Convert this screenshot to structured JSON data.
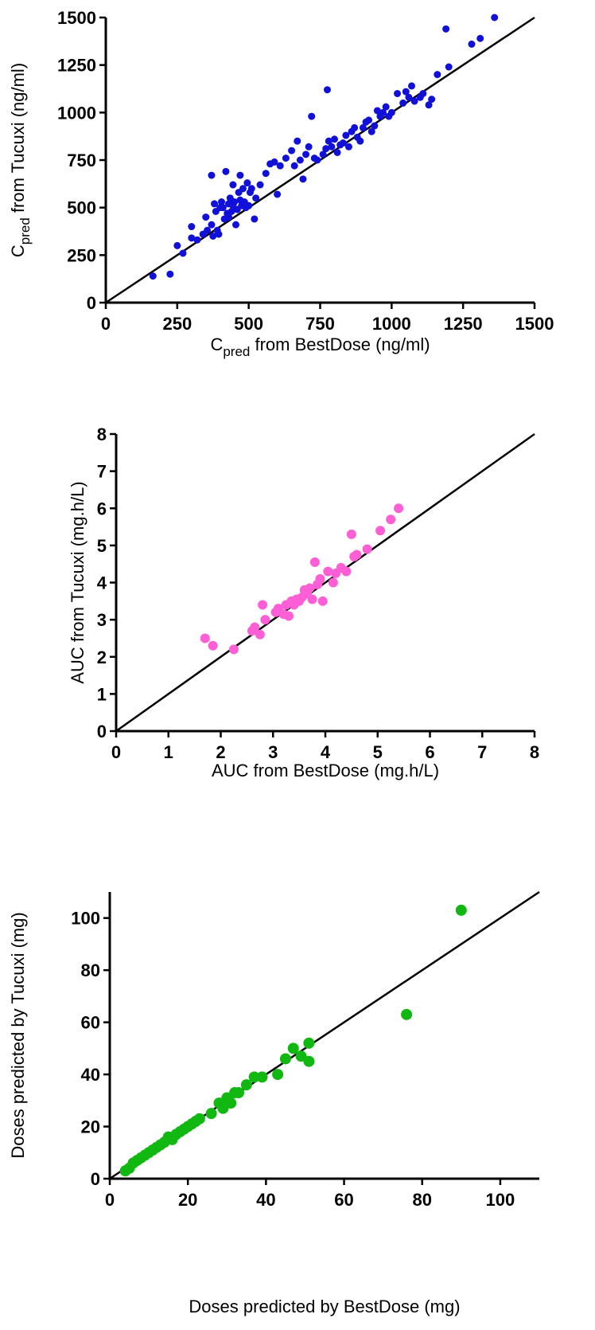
{
  "chart_data": [
    {
      "type": "scatter",
      "xlabel_main": "C",
      "xlabel_sub": "pred",
      "xlabel_rest": " from BestDose (ng/ml)",
      "ylabel_main": "C",
      "ylabel_sub": "pred",
      "ylabel_rest": " from Tucuxi (ng/ml)",
      "xlim": [
        0,
        1500
      ],
      "ylim": [
        0,
        1500
      ],
      "xticks": [
        "0",
        "250",
        "500",
        "750",
        "1000",
        "1250",
        "1500"
      ],
      "yticks": [
        "0",
        "250",
        "500",
        "750",
        "1000",
        "1250",
        "1500"
      ],
      "identity_line": true,
      "color": "#1010d8",
      "marker_radius": 4.5,
      "series": [
        {
          "x": [
            165,
            225,
            250,
            270,
            300,
            300,
            320,
            340,
            350,
            355,
            370,
            370,
            375,
            380,
            385,
            390,
            395,
            400,
            405,
            410,
            415,
            420,
            425,
            430,
            430,
            435,
            440,
            445,
            445,
            450,
            455,
            460,
            465,
            470,
            470,
            475,
            480,
            485,
            490,
            495,
            500,
            505,
            510,
            520,
            525,
            540,
            560,
            575,
            590,
            600,
            610,
            630,
            650,
            660,
            670,
            680,
            690,
            700,
            710,
            720,
            730,
            740,
            760,
            770,
            775,
            780,
            790,
            800,
            810,
            820,
            830,
            840,
            850,
            860,
            870,
            880,
            890,
            900,
            910,
            920,
            930,
            940,
            950,
            960,
            970,
            980,
            990,
            1000,
            1020,
            1040,
            1050,
            1060,
            1070,
            1080,
            1100,
            1110,
            1130,
            1140,
            1160,
            1190,
            1200,
            1280,
            1310,
            1360
          ],
          "y": [
            140,
            150,
            300,
            260,
            400,
            340,
            330,
            360,
            450,
            380,
            670,
            410,
            350,
            520,
            480,
            380,
            360,
            500,
            530,
            500,
            440,
            690,
            470,
            520,
            450,
            550,
            480,
            510,
            620,
            530,
            410,
            490,
            580,
            540,
            670,
            510,
            600,
            530,
            500,
            630,
            510,
            580,
            600,
            440,
            550,
            620,
            680,
            730,
            740,
            570,
            720,
            760,
            800,
            720,
            850,
            750,
            650,
            780,
            820,
            980,
            760,
            750,
            780,
            810,
            1120,
            850,
            820,
            860,
            790,
            830,
            840,
            880,
            820,
            900,
            920,
            870,
            850,
            920,
            950,
            960,
            900,
            930,
            1010,
            980,
            1000,
            1030,
            980,
            1000,
            1100,
            1050,
            1110,
            1080,
            1140,
            1060,
            1080,
            1100,
            1040,
            1070,
            1200,
            1440,
            1240,
            1360,
            1390,
            1500
          ]
        }
      ]
    },
    {
      "type": "scatter",
      "xlabel": "AUC from BestDose (mg.h/L)",
      "ylabel": "AUC from Tucuxi (mg.h/L)",
      "xlim": [
        0,
        8
      ],
      "ylim": [
        0,
        8
      ],
      "xticks": [
        "0",
        "1",
        "2",
        "3",
        "4",
        "5",
        "6",
        "7",
        "8"
      ],
      "yticks": [
        "0",
        "1",
        "2",
        "3",
        "4",
        "5",
        "6",
        "7",
        "8"
      ],
      "identity_line": true,
      "color": "#ff5fd6",
      "marker_radius": 6,
      "series": [
        {
          "x": [
            1.7,
            1.85,
            2.25,
            2.6,
            2.65,
            2.75,
            2.8,
            2.85,
            3.05,
            3.1,
            3.2,
            3.25,
            3.3,
            3.35,
            3.4,
            3.45,
            3.5,
            3.55,
            3.6,
            3.65,
            3.7,
            3.75,
            3.8,
            3.85,
            3.9,
            3.95,
            4.05,
            4.15,
            4.2,
            4.3,
            4.4,
            4.5,
            4.55,
            4.6,
            4.8,
            5.05,
            5.25,
            5.4
          ],
          "y": [
            2.5,
            2.3,
            2.2,
            2.7,
            2.8,
            2.6,
            3.4,
            3.0,
            3.2,
            3.3,
            3.15,
            3.4,
            3.1,
            3.5,
            3.4,
            3.55,
            3.5,
            3.6,
            3.8,
            3.7,
            3.85,
            3.55,
            4.55,
            3.95,
            4.1,
            3.5,
            4.3,
            4.0,
            4.25,
            4.4,
            4.3,
            5.3,
            4.7,
            4.75,
            4.9,
            5.4,
            5.7,
            6.0
          ]
        }
      ]
    },
    {
      "type": "scatter",
      "xlabel": "Doses predicted by BestDose (mg)",
      "ylabel": "Doses predicted by Tucuxi (mg)",
      "xlim": [
        0,
        110
      ],
      "ylim": [
        0,
        110
      ],
      "xticks": [
        "0",
        "20",
        "40",
        "60",
        "80",
        "100"
      ],
      "yticks": [
        "0",
        "20",
        "40",
        "60",
        "80",
        "100"
      ],
      "identity_line": true,
      "color": "#11b811",
      "marker_radius": 7,
      "series": [
        {
          "x": [
            4,
            5,
            6,
            7,
            8,
            9,
            10,
            11,
            12,
            13,
            14,
            15,
            16,
            17,
            18,
            19,
            20,
            21,
            22,
            23,
            26,
            28,
            29,
            30,
            31,
            32,
            33,
            35,
            37,
            39,
            43,
            45,
            47,
            49,
            51,
            51,
            76,
            90
          ],
          "y": [
            3,
            4,
            6,
            7,
            8,
            9,
            10,
            11,
            12,
            13,
            14,
            16,
            15,
            17,
            18,
            19,
            20,
            21,
            22,
            23,
            25,
            29,
            27,
            31,
            29,
            33,
            33,
            36,
            39,
            39,
            40,
            46,
            50,
            47,
            52,
            45,
            63,
            103
          ]
        }
      ]
    }
  ]
}
